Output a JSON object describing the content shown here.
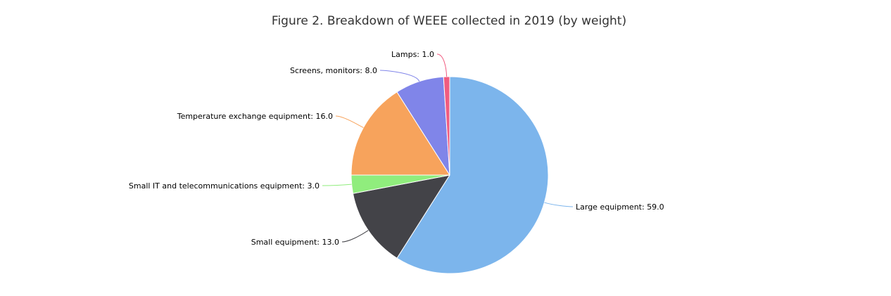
{
  "chart_data": {
    "type": "pie",
    "title": "Figure 2. Breakdown of WEEE collected in 2019 (by weight)",
    "start_angle": 0,
    "direction": "clockwise",
    "slices": [
      {
        "label": "Large equipment",
        "value": 59.0,
        "display": "59.0",
        "color": "#7cb5ec"
      },
      {
        "label": "Small equipment",
        "value": 13.0,
        "display": "13.0",
        "color": "#434348"
      },
      {
        "label": "Small IT and telecommunications equipment",
        "value": 3.0,
        "display": "3.0",
        "color": "#90ed7d"
      },
      {
        "label": "Temperature exchange equipment",
        "value": 16.0,
        "display": "16.0",
        "color": "#f7a35c"
      },
      {
        "label": "Screens, monitors",
        "value": 8.0,
        "display": "8.0",
        "color": "#8085e9"
      },
      {
        "label": "Lamps",
        "value": 1.0,
        "display": "1.0",
        "color": "#f15c80"
      }
    ]
  }
}
